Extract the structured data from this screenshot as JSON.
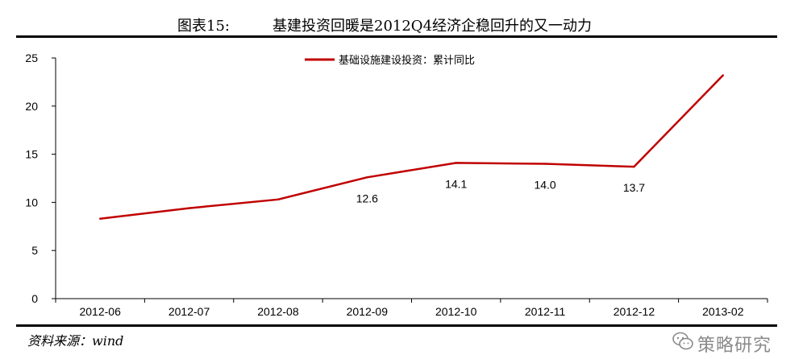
{
  "header": {
    "figure_label": "图表15:",
    "title": "基建投资回暖是2012Q4经济企稳回升的又一动力"
  },
  "source": "资料来源：wind",
  "watermark": {
    "text": "策略研究",
    "icon": "wechat-logo-icon"
  },
  "colors": {
    "line": "#c00000",
    "axis": "#000000"
  },
  "chart_data": {
    "type": "line",
    "title": "",
    "xlabel": "",
    "ylabel": "",
    "categories": [
      "2012-06",
      "2012-07",
      "2012-08",
      "2012-09",
      "2012-10",
      "2012-11",
      "2012-12",
      "2013-02"
    ],
    "ylim": [
      0,
      25
    ],
    "yticks": [
      0,
      5,
      10,
      15,
      20,
      25
    ],
    "grid": false,
    "legend": "top-center",
    "series": [
      {
        "name": "基础设施建设投资：累计同比",
        "values": [
          8.3,
          9.4,
          10.3,
          12.6,
          14.1,
          14.0,
          13.7,
          23.2
        ],
        "labels": [
          "",
          "",
          "",
          "12.6",
          "14.1",
          "14.0",
          "13.7",
          ""
        ]
      }
    ]
  }
}
